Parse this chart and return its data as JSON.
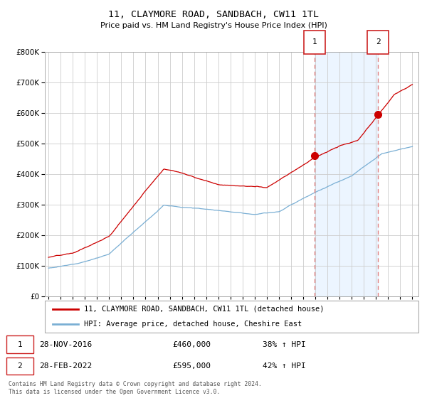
{
  "title": "11, CLAYMORE ROAD, SANDBACH, CW11 1TL",
  "subtitle": "Price paid vs. HM Land Registry's House Price Index (HPI)",
  "legend_line1": "11, CLAYMORE ROAD, SANDBACH, CW11 1TL (detached house)",
  "legend_line2": "HPI: Average price, detached house, Cheshire East",
  "ann1_label": "1",
  "ann1_date": "28-NOV-2016",
  "ann1_price": "£460,000",
  "ann1_pct": "38% ↑ HPI",
  "ann2_label": "2",
  "ann2_date": "28-FEB-2022",
  "ann2_price": "£595,000",
  "ann2_pct": "42% ↑ HPI",
  "footer": "Contains HM Land Registry data © Crown copyright and database right 2024.\nThis data is licensed under the Open Government Licence v3.0.",
  "red_color": "#cc0000",
  "blue_color": "#7aafd4",
  "bg_shaded": "#ddeeff",
  "vline_color": "#e08080",
  "grid_color": "#cccccc",
  "ylim": [
    0,
    800000
  ],
  "xlim_left": 1994.7,
  "xlim_right": 2025.5,
  "marker1_x": 2016.92,
  "marker1_y": 460000,
  "marker2_x": 2022.17,
  "marker2_y": 595000,
  "seed": 12
}
